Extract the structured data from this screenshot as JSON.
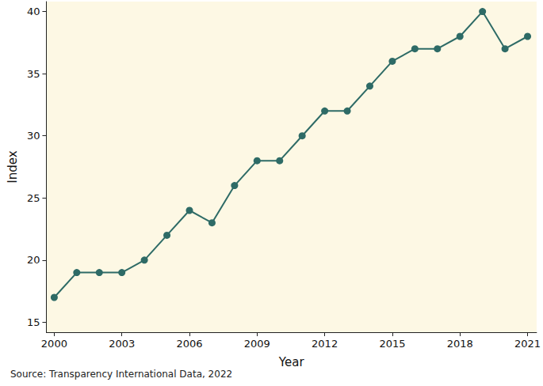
{
  "chart_data": {
    "type": "line",
    "x_label": "Year",
    "y_label": "Index",
    "caption": "Source: Transparency International Data, 2022",
    "x": [
      2000,
      2001,
      2002,
      2003,
      2004,
      2005,
      2006,
      2007,
      2008,
      2009,
      2010,
      2011,
      2012,
      2013,
      2014,
      2015,
      2016,
      2017,
      2018,
      2019,
      2020,
      2021
    ],
    "values": [
      17,
      19,
      19,
      19,
      20,
      22,
      24,
      23,
      26,
      28,
      28,
      30,
      32,
      32,
      34,
      36,
      37,
      37,
      38,
      40,
      37,
      38
    ],
    "color": "#2e6b66",
    "marker": "circle",
    "line_style": "solid",
    "xlim": [
      1999.65,
      2021.4
    ],
    "xticks": [
      2000,
      2003,
      2006,
      2009,
      2012,
      2015,
      2018,
      2021
    ],
    "ylim": [
      14.2,
      40.8
    ],
    "yticks": [
      15,
      20,
      25,
      30,
      35,
      40
    ],
    "grid": false
  }
}
